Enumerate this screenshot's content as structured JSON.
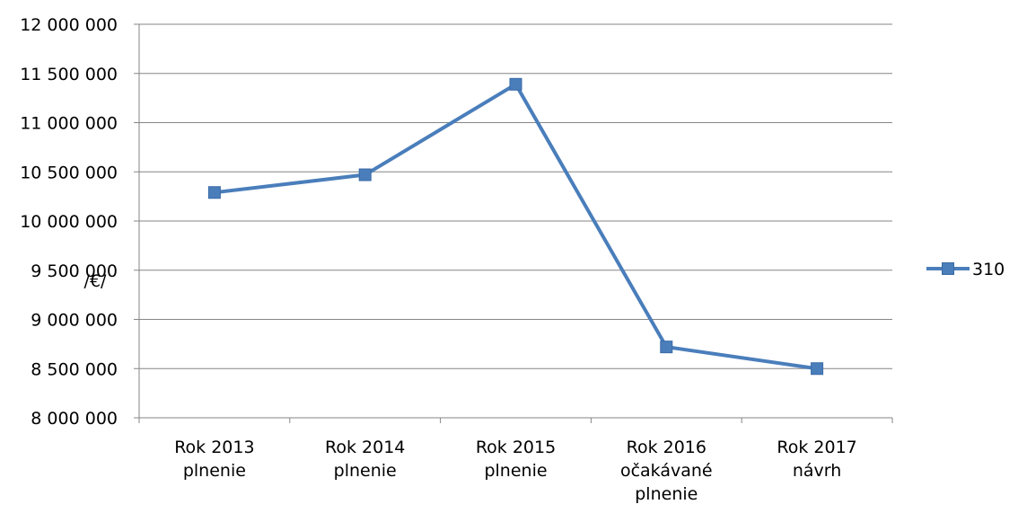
{
  "chart_data": {
    "type": "line",
    "title": "",
    "xlabel": "",
    "ylabel": "/€/",
    "categories": [
      [
        "Rok 2013",
        "plnenie"
      ],
      [
        "Rok 2014",
        "plnenie"
      ],
      [
        "Rok 2015",
        "plnenie"
      ],
      [
        "Rok 2016",
        "očakávané",
        "plnenie"
      ],
      [
        "Rok 2017",
        "návrh"
      ]
    ],
    "series": [
      {
        "name": "310",
        "values": [
          10290000,
          10470000,
          11390000,
          8720000,
          8500000
        ],
        "color": "#4a7ebb",
        "marker": "square"
      }
    ],
    "ylim": [
      8000000,
      12000000
    ],
    "yticks": [
      8000000,
      8500000,
      9000000,
      9500000,
      10000000,
      10500000,
      11000000,
      11500000,
      12000000
    ],
    "ytick_labels": [
      "8 000 000",
      "8 500 000",
      "9 000 000",
      "9 500 000",
      "10 000 000",
      "10 500 000",
      "11 000 000",
      "11 500 000",
      "12 000 000"
    ],
    "grid": true,
    "legend_position": "right",
    "colors": {
      "gridline": "#868686",
      "axis": "#868686"
    }
  }
}
